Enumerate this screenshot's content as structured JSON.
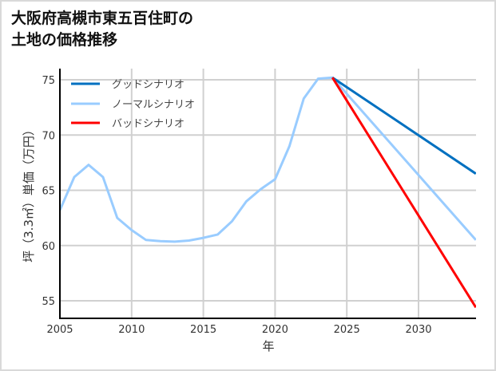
{
  "title": {
    "line1": "大阪府高槻市東五百住町の",
    "line2": "土地の価格推移"
  },
  "chart_data": {
    "type": "line",
    "title": "大阪府高槻市東五百住町の土地の価格推移",
    "xlabel": "年",
    "ylabel": "坪（3.3㎡）単価（万円）",
    "xlim": [
      2005,
      2034
    ],
    "ylim": [
      53.5,
      76.5
    ],
    "xticks": [
      2005,
      2010,
      2015,
      2020,
      2025,
      2030
    ],
    "yticks": [
      55,
      60,
      65,
      70,
      75
    ],
    "grid": true,
    "legend_position": "upper left",
    "series": [
      {
        "name": "グッドシナリオ",
        "color": "#0070c0",
        "x": [
          2024,
          2034
        ],
        "values": [
          75.2,
          66.5
        ]
      },
      {
        "name": "ノーマルシナリオ",
        "color": "#99ccff",
        "x": [
          2005,
          2006,
          2007,
          2008,
          2009,
          2010,
          2011,
          2012,
          2013,
          2014,
          2015,
          2016,
          2017,
          2018,
          2019,
          2020,
          2021,
          2022,
          2023,
          2024,
          2034
        ],
        "values": [
          63.2,
          66.2,
          67.3,
          66.2,
          62.5,
          61.4,
          60.5,
          60.4,
          60.35,
          60.45,
          60.7,
          61.0,
          62.2,
          64.0,
          65.1,
          66.0,
          69.0,
          73.3,
          75.1,
          75.2,
          60.5
        ]
      },
      {
        "name": "バッドシナリオ",
        "color": "#ff0000",
        "x": [
          2024,
          2034
        ],
        "values": [
          75.2,
          54.4
        ]
      }
    ]
  }
}
